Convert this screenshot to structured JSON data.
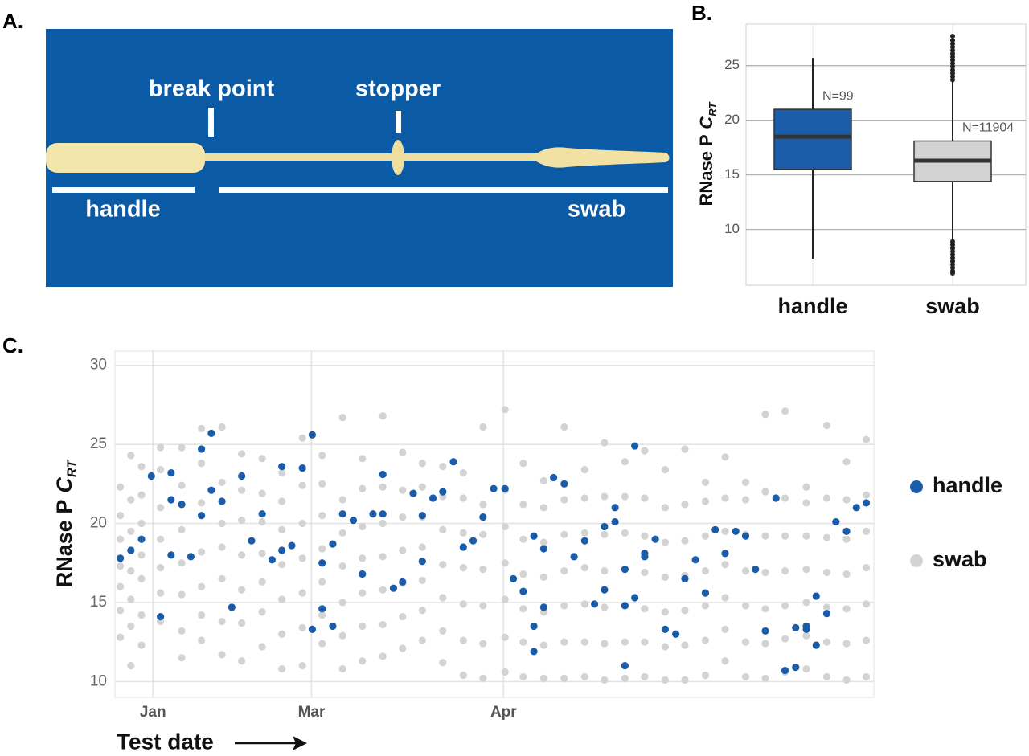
{
  "panel_labels": [
    "A.",
    "B.",
    "C."
  ],
  "photo": {
    "labels": [
      "break point",
      "stopper",
      "handle",
      "swab"
    ]
  },
  "chart_data": [
    {
      "type": "box",
      "y_label": {
        "text": "RNase P",
        "symbol": "C",
        "subscript": "RT"
      },
      "categories": [
        "handle",
        "swab"
      ],
      "colors": [
        "#1a5ca8",
        "#d3d3d3"
      ],
      "min": [
        7.3,
        9.0
      ],
      "q1": [
        15.5,
        14.4
      ],
      "median": [
        18.5,
        16.3
      ],
      "q3": [
        21.0,
        18.1
      ],
      "max": [
        25.7,
        23.6
      ],
      "outliers": [
        [],
        [
          8.9,
          8.6,
          8.3,
          8.0,
          7.7,
          7.4,
          7.1,
          6.8,
          6.5,
          6.2,
          6.0,
          23.7,
          24.0,
          24.3,
          24.6,
          24.9,
          25.2,
          25.5,
          25.8,
          26.1,
          26.4,
          26.7,
          27.0,
          27.3,
          27.7
        ]
      ],
      "n_labels": [
        "N=99",
        "N=11904"
      ],
      "ylim": [
        4.9,
        28.8
      ],
      "yticks": [
        10,
        15,
        20,
        25
      ],
      "grid": true
    },
    {
      "type": "scatter",
      "y_label": {
        "text": "RNase P",
        "symbol": "C",
        "subscript": "RT"
      },
      "x_label": "Test date",
      "xlim": [
        0,
        100
      ],
      "xticks": [
        {
          "value": 5,
          "label": "Jan"
        },
        {
          "value": 25.9,
          "label": "Mar"
        },
        {
          "value": 51.2,
          "label": "Apr"
        }
      ],
      "ylim": [
        9,
        30.9
      ],
      "yticks": [
        10,
        15,
        20,
        25,
        30
      ],
      "grid": true,
      "legend": "right",
      "series": [
        {
          "name": "swab",
          "color": "#d3d3d3",
          "x": [
            0.7,
            0.7,
            0.7,
            0.7,
            0.7,
            0.7,
            0.7,
            2.1,
            2.1,
            2.1,
            2.1,
            2.1,
            2.1,
            2.1,
            3.5,
            3.5,
            3.5,
            3.5,
            3.5,
            3.5,
            3.5,
            6.0,
            6.0,
            6.0,
            6.0,
            6.0,
            6.0,
            6.0,
            8.8,
            8.8,
            8.8,
            8.8,
            8.8,
            8.8,
            8.8,
            11.4,
            11.4,
            11.4,
            11.4,
            11.4,
            11.4,
            11.4,
            14.1,
            14.1,
            14.1,
            14.1,
            14.1,
            14.1,
            14.1,
            16.7,
            16.7,
            16.7,
            16.7,
            16.7,
            16.7,
            16.7,
            19.4,
            19.4,
            19.4,
            19.4,
            19.4,
            19.4,
            19.4,
            22.0,
            22.0,
            22.0,
            22.0,
            22.0,
            22.0,
            22.0,
            24.7,
            24.7,
            24.7,
            24.7,
            24.7,
            24.7,
            24.7,
            27.3,
            27.3,
            27.3,
            27.3,
            27.3,
            27.3,
            27.3,
            30.0,
            30.0,
            30.0,
            30.0,
            30.0,
            30.0,
            30.0,
            32.6,
            32.6,
            32.6,
            32.6,
            32.6,
            32.6,
            32.6,
            35.3,
            35.3,
            35.3,
            35.3,
            35.3,
            35.3,
            35.3,
            37.9,
            37.9,
            37.9,
            37.9,
            37.9,
            37.9,
            37.9,
            40.5,
            40.5,
            40.5,
            40.5,
            40.5,
            40.5,
            40.5,
            43.2,
            43.2,
            43.2,
            43.2,
            43.2,
            43.2,
            43.2,
            45.9,
            45.9,
            45.9,
            45.9,
            45.9,
            45.9,
            45.9,
            48.5,
            48.5,
            48.5,
            48.5,
            48.5,
            48.5,
            48.5,
            51.4,
            51.4,
            51.4,
            51.4,
            51.4,
            51.4,
            51.4,
            53.8,
            53.8,
            53.8,
            53.8,
            53.8,
            53.8,
            53.8,
            56.5,
            56.5,
            56.5,
            56.5,
            56.5,
            56.5,
            56.5,
            59.2,
            59.2,
            59.2,
            59.2,
            59.2,
            59.2,
            59.2,
            61.9,
            61.9,
            61.9,
            61.9,
            61.9,
            61.9,
            61.9,
            64.5,
            64.5,
            64.5,
            64.5,
            64.5,
            64.5,
            64.5,
            67.2,
            67.2,
            67.2,
            67.2,
            67.2,
            67.2,
            67.2,
            69.8,
            69.8,
            69.8,
            69.8,
            69.8,
            69.8,
            69.8,
            72.5,
            72.5,
            72.5,
            72.5,
            72.5,
            72.5,
            72.5,
            75.1,
            75.1,
            75.1,
            75.1,
            75.1,
            75.1,
            75.1,
            77.8,
            77.8,
            77.8,
            77.8,
            77.8,
            77.8,
            77.8,
            80.4,
            80.4,
            80.4,
            80.4,
            80.4,
            80.4,
            80.4,
            83.1,
            83.1,
            83.1,
            83.1,
            83.1,
            83.1,
            83.1,
            85.7,
            85.7,
            85.7,
            85.7,
            85.7,
            85.7,
            85.7,
            88.3,
            88.3,
            88.3,
            88.3,
            88.3,
            88.3,
            88.3,
            91.1,
            91.1,
            91.1,
            91.1,
            91.1,
            91.1,
            91.1,
            93.8,
            93.8,
            93.8,
            93.8,
            93.8,
            93.8,
            93.8,
            96.4,
            96.4,
            96.4,
            96.4,
            96.4,
            96.4,
            96.4,
            99.0,
            99.0,
            99.0,
            99.0,
            99.0,
            99.0,
            99.0
          ],
          "values": [
            12.8,
            14.5,
            16,
            17.3,
            19,
            20.5,
            22.3,
            11,
            13.5,
            15.2,
            17,
            19.5,
            21.5,
            24.3,
            12.3,
            14.2,
            16.5,
            18,
            20,
            21.8,
            23.6,
            13.8,
            15.6,
            17.2,
            19,
            21,
            23.4,
            24.8,
            11.5,
            13.2,
            15.5,
            17.5,
            19.6,
            22.4,
            24.8,
            12.6,
            14.2,
            16,
            18.2,
            21.3,
            23.8,
            26,
            11.7,
            13.8,
            16.5,
            18.5,
            20,
            22.6,
            26.1,
            11.3,
            13.7,
            15.8,
            18,
            20.2,
            22.1,
            24.4,
            12.2,
            14.4,
            16.3,
            18.1,
            20.1,
            21.9,
            24.1,
            10.8,
            13,
            15.2,
            17.4,
            19.6,
            21.4,
            23.2,
            11,
            13.4,
            15.6,
            17.8,
            20,
            22.4,
            25.4,
            12.4,
            14.2,
            16.3,
            18.4,
            20.5,
            22.5,
            24.3,
            10.8,
            12.9,
            15,
            17.3,
            19.4,
            21.5,
            26.7,
            11.3,
            13.5,
            15.6,
            17.8,
            19.8,
            22.2,
            24.1,
            11.6,
            13.6,
            15.8,
            17.9,
            20,
            22.3,
            26.8,
            12.1,
            14.1,
            16.2,
            18.3,
            20.4,
            22.1,
            24.5,
            12.6,
            14.5,
            16.4,
            18.5,
            20.4,
            22.3,
            23.8,
            11.2,
            13.2,
            15.3,
            17.4,
            19.6,
            21.7,
            23.6,
            10.4,
            12.6,
            14.9,
            17.2,
            19.4,
            21.6,
            23.2,
            10.2,
            12.4,
            14.8,
            17.1,
            19.3,
            21.2,
            26.1,
            10.6,
            12.8,
            15.2,
            17.5,
            19.8,
            22.1,
            27.2,
            10.3,
            12.5,
            14.6,
            16.8,
            19,
            21.2,
            23.8,
            10.2,
            12.3,
            14.4,
            16.6,
            18.8,
            21,
            22.7,
            10.2,
            12.5,
            14.8,
            17,
            19.3,
            21.5,
            26.1,
            10.3,
            12.5,
            14.9,
            17.2,
            19.4,
            21.6,
            23.4,
            10.1,
            12.4,
            14.7,
            17,
            19.3,
            21.7,
            25.1,
            10.2,
            12.5,
            14.8,
            17.1,
            19.4,
            21.7,
            23.9,
            10.3,
            12.5,
            14.6,
            16.9,
            19.2,
            21.6,
            24.6,
            10.1,
            12.2,
            14.4,
            16.6,
            18.8,
            21,
            23.4,
            10.1,
            12.3,
            14.5,
            16.7,
            18.9,
            21.2,
            24.7,
            10.4,
            12.6,
            14.8,
            17,
            19.2,
            21.4,
            22.6,
            11.3,
            13.3,
            15.3,
            17.4,
            19.5,
            21.6,
            24.2,
            10.3,
            12.5,
            14.8,
            17,
            19.3,
            21.5,
            22.6,
            10.2,
            12.4,
            14.6,
            16.9,
            19.2,
            22,
            26.9,
            10.6,
            12.7,
            14.8,
            17,
            19.2,
            21.6,
            27.1,
            10.8,
            12.9,
            15,
            17.1,
            19.2,
            21.3,
            22.3,
            10.3,
            12.5,
            14.7,
            16.9,
            19.1,
            21.6,
            26.2,
            10.1,
            12.4,
            14.6,
            16.8,
            19,
            21.5,
            23.9,
            10.3,
            12.6,
            14.9,
            17.2,
            19.5,
            21.8,
            25.3
          ]
        },
        {
          "name": "handle",
          "color": "#1a5ca8",
          "x": [
            0.7,
            2.1,
            3.5,
            4.8,
            6.0,
            7.4,
            7.4,
            7.4,
            8.8,
            10.0,
            11.4,
            11.4,
            12.7,
            12.7,
            14.1,
            15.4,
            16.7,
            18.0,
            19.4,
            20.7,
            22.0,
            22.0,
            23.3,
            24.7,
            26.0,
            26.0,
            27.3,
            27.3,
            28.7,
            28.7,
            30.0,
            31.4,
            32.6,
            34.0,
            35.3,
            35.3,
            36.7,
            37.9,
            39.3,
            40.5,
            40.5,
            41.9,
            43.2,
            44.6,
            45.9,
            47.2,
            48.5,
            49.9,
            51.4,
            52.5,
            53.8,
            55.2,
            55.2,
            55.2,
            56.5,
            56.5,
            57.8,
            59.2,
            60.5,
            61.9,
            63.2,
            64.5,
            64.5,
            65.9,
            65.9,
            67.2,
            67.2,
            67.2,
            68.5,
            68.5,
            69.8,
            69.8,
            71.2,
            72.5,
            73.9,
            75.1,
            76.5,
            77.8,
            79.1,
            80.4,
            81.8,
            83.1,
            84.4,
            85.7,
            87.1,
            88.3,
            89.7,
            89.7,
            91.1,
            91.1,
            92.4,
            92.4,
            93.8,
            95.0,
            96.4,
            97.7,
            99.0
          ],
          "values": [
            17.8,
            18.3,
            19.0,
            23.0,
            14.1,
            23.2,
            21.5,
            18.0,
            21.2,
            17.9,
            24.7,
            20.5,
            25.7,
            22.1,
            21.4,
            14.7,
            23.0,
            18.9,
            20.6,
            17.7,
            18.3,
            23.6,
            18.6,
            23.5,
            25.6,
            13.3,
            17.5,
            14.6,
            18.7,
            13.5,
            20.6,
            20.2,
            16.8,
            20.6,
            20.6,
            23.1,
            15.9,
            16.3,
            21.9,
            20.5,
            17.6,
            21.6,
            22.0,
            23.9,
            18.5,
            18.9,
            20.4,
            22.2,
            22.2,
            16.5,
            15.7,
            19.2,
            13.5,
            11.9,
            18.4,
            14.7,
            22.9,
            22.5,
            17.9,
            18.9,
            14.9,
            15.8,
            19.8,
            21.0,
            20.1,
            17.1,
            14.8,
            11.0,
            24.9,
            15.3,
            18.1,
            17.9,
            19.0,
            13.3,
            13.0,
            16.5,
            17.7,
            15.6,
            19.6,
            18.1,
            19.5,
            19.2,
            17.1,
            13.2,
            21.6,
            10.7,
            10.9,
            13.4,
            13.5,
            13.3,
            15.4,
            12.3,
            14.3,
            20.1,
            19.5,
            21.0,
            21.3
          ]
        }
      ]
    }
  ]
}
